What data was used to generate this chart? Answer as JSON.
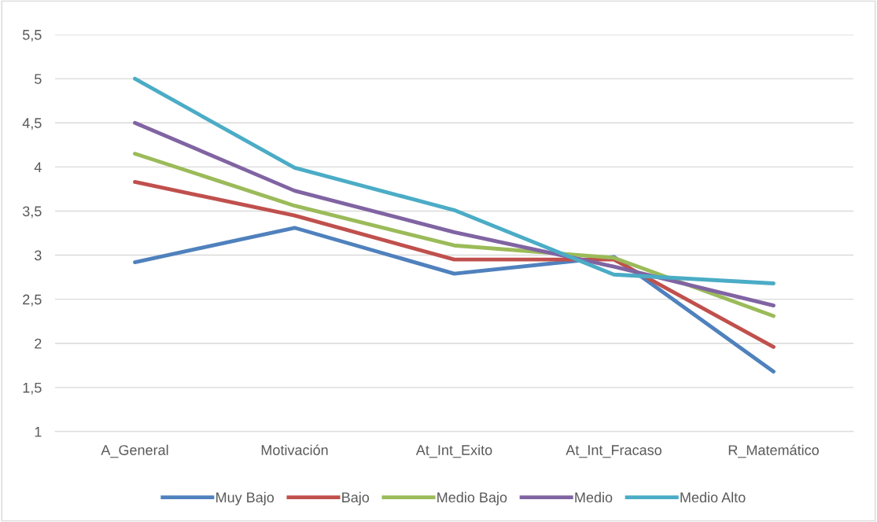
{
  "chart_data": {
    "type": "line",
    "categories": [
      "A_General",
      "Motivación",
      "At_Int_Exito",
      "At_Int_Fracaso",
      "R_Matemático"
    ],
    "series": [
      {
        "name": "Muy Bajo",
        "color": "#4f81bd",
        "values": [
          2.92,
          3.31,
          2.79,
          2.98,
          1.68
        ]
      },
      {
        "name": "Bajo",
        "color": "#c0504d",
        "values": [
          3.83,
          3.45,
          2.95,
          2.95,
          1.96
        ]
      },
      {
        "name": "Medio Bajo",
        "color": "#9bbb59",
        "values": [
          4.15,
          3.56,
          3.11,
          2.97,
          2.31
        ]
      },
      {
        "name": "Medio",
        "color": "#8064a2",
        "values": [
          4.5,
          3.73,
          3.26,
          2.87,
          2.43
        ]
      },
      {
        "name": "Medio Alto",
        "color": "#4bacc6",
        "values": [
          5.0,
          3.99,
          3.51,
          2.78,
          2.68
        ]
      }
    ],
    "ylim": [
      1,
      5.5
    ],
    "yticks": [
      {
        "value": 1,
        "label": "1"
      },
      {
        "value": 1.5,
        "label": "1,5"
      },
      {
        "value": 2,
        "label": "2"
      },
      {
        "value": 2.5,
        "label": "2,5"
      },
      {
        "value": 3,
        "label": "3"
      },
      {
        "value": 3.5,
        "label": "3,5"
      },
      {
        "value": 4,
        "label": "4"
      },
      {
        "value": 4.5,
        "label": "4,5"
      },
      {
        "value": 5,
        "label": "5"
      },
      {
        "value": 5.5,
        "label": "5,5"
      }
    ],
    "grid": "y",
    "legend": "bottom",
    "marker": "none",
    "line_style": "solid"
  }
}
